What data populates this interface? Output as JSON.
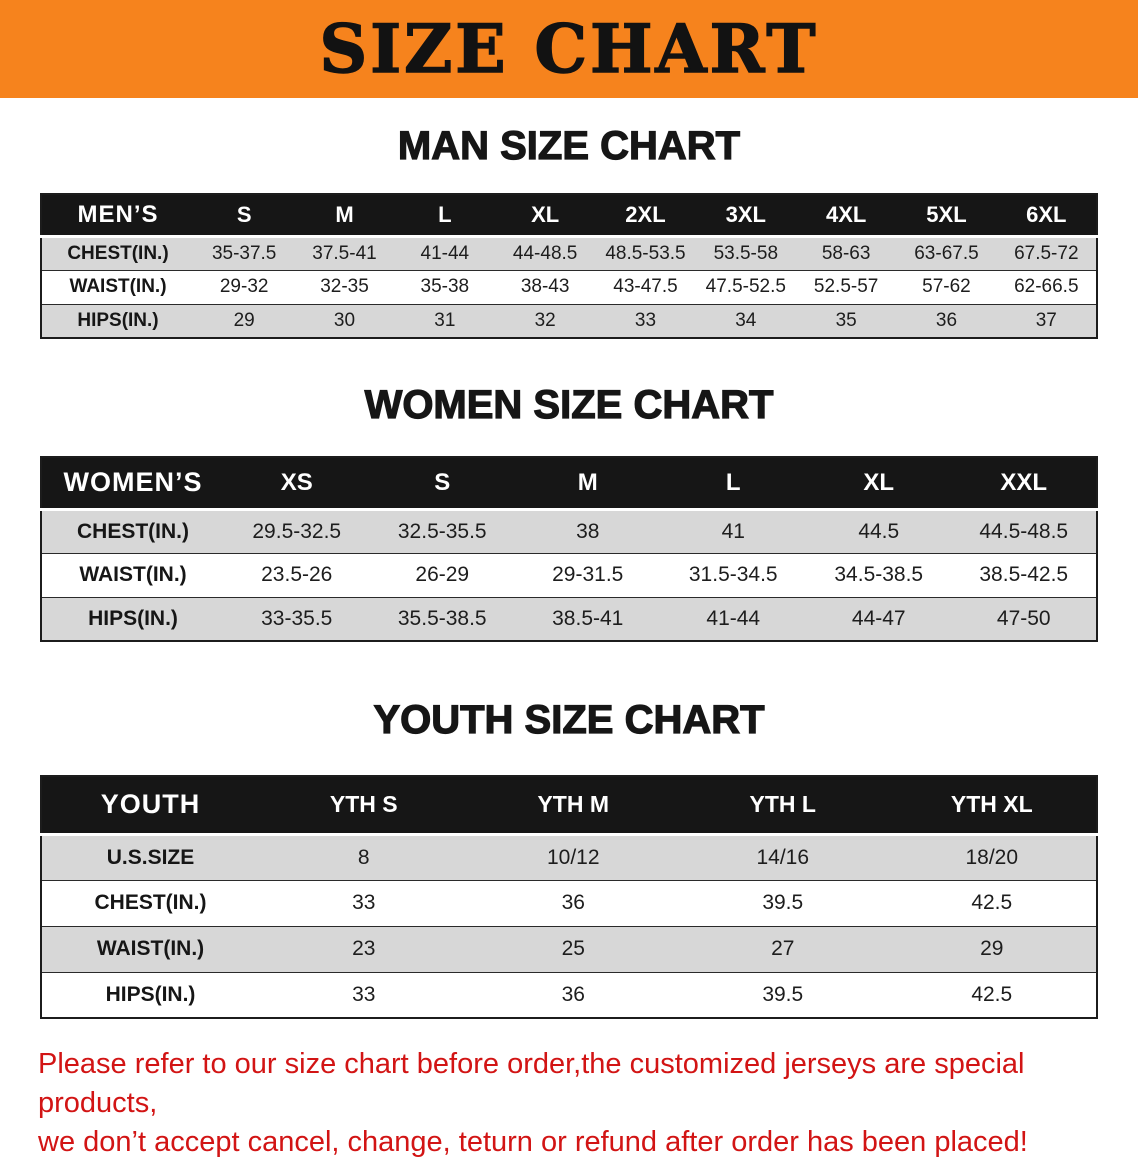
{
  "banner": {
    "title": "SIZE CHART",
    "bg_color": "#f6831d"
  },
  "sections": [
    {
      "heading": "MAN SIZE CHART",
      "table": {
        "header": [
          "MEN’S",
          "S",
          "M",
          "L",
          "XL",
          "2XL",
          "3XL",
          "4XL",
          "5XL",
          "6XL"
        ],
        "rows": [
          {
            "label": "CHEST(IN.)",
            "values": [
              "35-37.5",
              "37.5-41",
              "41-44",
              "44-48.5",
              "48.5-53.5",
              "53.5-58",
              "58-63",
              "63-67.5",
              "67.5-72"
            ]
          },
          {
            "label": "WAIST(IN.)",
            "values": [
              "29-32",
              "32-35",
              "35-38",
              "38-43",
              "43-47.5",
              "47.5-52.5",
              "52.5-57",
              "57-62",
              "62-66.5"
            ]
          },
          {
            "label": "HIPS(IN.)",
            "values": [
              "29",
              "30",
              "31",
              "32",
              "33",
              "34",
              "35",
              "36",
              "37"
            ]
          }
        ]
      }
    },
    {
      "heading": "WOMEN SIZE CHART",
      "table": {
        "header": [
          "WOMEN’S",
          "XS",
          "S",
          "M",
          "L",
          "XL",
          "XXL"
        ],
        "rows": [
          {
            "label": "CHEST(IN.)",
            "values": [
              "29.5-32.5",
              "32.5-35.5",
              "38",
              "41",
              "44.5",
              "44.5-48.5"
            ]
          },
          {
            "label": "WAIST(IN.)",
            "values": [
              "23.5-26",
              "26-29",
              "29-31.5",
              "31.5-34.5",
              "34.5-38.5",
              "38.5-42.5"
            ]
          },
          {
            "label": "HIPS(IN.)",
            "values": [
              "33-35.5",
              "35.5-38.5",
              "38.5-41",
              "41-44",
              "44-47",
              "47-50"
            ]
          }
        ]
      }
    },
    {
      "heading": "YOUTH SIZE CHART",
      "table": {
        "header": [
          "YOUTH",
          "YTH S",
          "YTH M",
          "YTH L",
          "YTH XL"
        ],
        "rows": [
          {
            "label": "U.S.SIZE",
            "values": [
              "8",
              "10/12",
              "14/16",
              "18/20"
            ]
          },
          {
            "label": "CHEST(IN.)",
            "values": [
              "33",
              "36",
              "39.5",
              "42.5"
            ]
          },
          {
            "label": "WAIST(IN.)",
            "values": [
              "23",
              "25",
              "27",
              "29"
            ]
          },
          {
            "label": "HIPS(IN.)",
            "values": [
              "33",
              "36",
              "39.5",
              "42.5"
            ]
          }
        ]
      }
    }
  ],
  "disclaimer": {
    "color": "#d21414",
    "line1": "Please refer to our size chart before order,the customized jerseys are special products,",
    "line2": "we don’t accept cancel, change, teturn or refund after order has been placed!"
  },
  "colors": {
    "banner_orange": "#f6831d",
    "header_black": "#161616",
    "row_stripe_gray": "#d7d7d7",
    "disclaimer_red": "#d21414"
  }
}
